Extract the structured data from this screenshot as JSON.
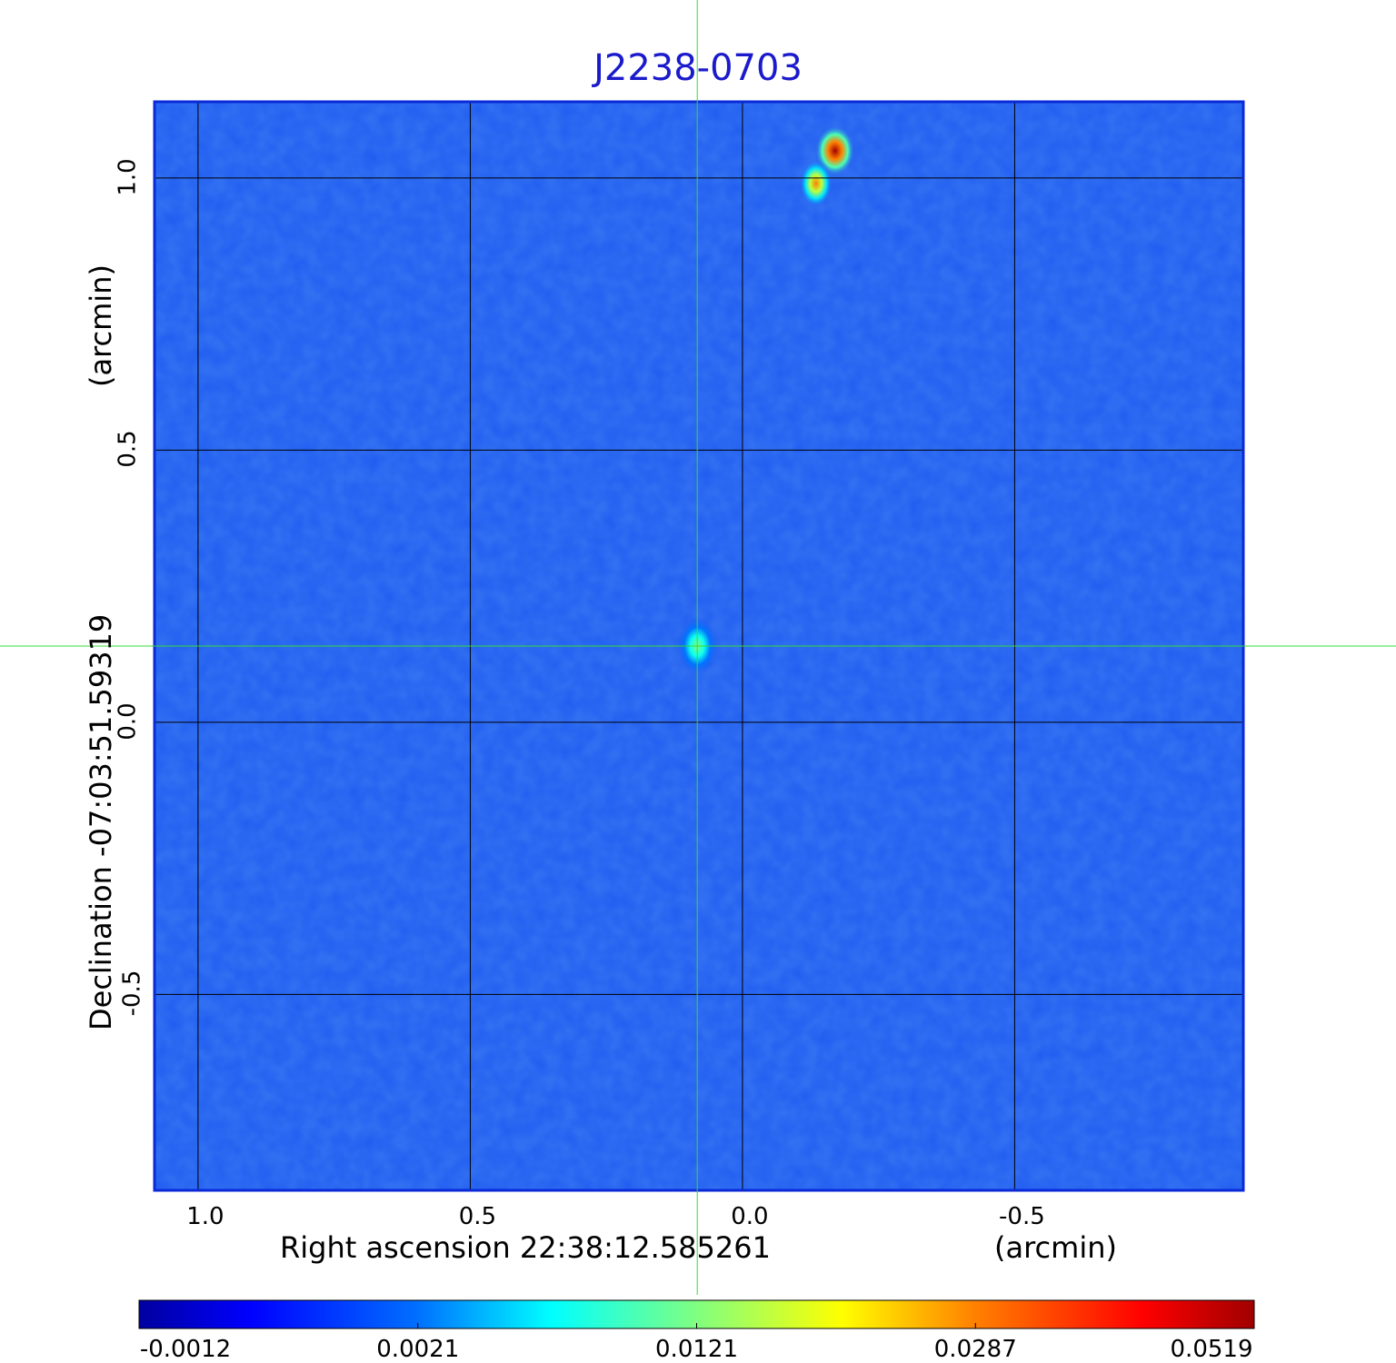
{
  "chart_data": {
    "type": "heatmap",
    "title": "J2238-0703",
    "xlabel": "Right ascension  22:38:12.585261",
    "xlabel_unit": "(arcmin)",
    "ylabel": "Declination  -07:03:51.59319",
    "ylabel_unit": "(arcmin)",
    "x_ticks": [
      "1.0",
      "0.5",
      "0.0",
      "-0.5"
    ],
    "x_tick_values": [
      1.0,
      0.5,
      0.0,
      -0.5
    ],
    "y_ticks": [
      "1.0",
      "0.5",
      "0.0",
      "-0.5"
    ],
    "y_tick_values": [
      1.0,
      0.5,
      0.0,
      -0.5
    ],
    "xlim": [
      1.08,
      -0.92
    ],
    "ylim": [
      -0.86,
      1.14
    ],
    "grid": true,
    "crosshair": {
      "x": 0.083,
      "y": 0.14,
      "color": "#33dd33"
    },
    "sources": [
      {
        "x": 0.083,
        "y": 0.14,
        "value": 0.0121
      },
      {
        "x": -0.17,
        "y": 1.05,
        "value": 0.0519
      },
      {
        "x": -0.135,
        "y": 0.99,
        "value": 0.0287
      }
    ],
    "colorbar": {
      "ticks": [
        "-0.0012",
        "0.0021",
        "0.0121",
        "0.0287",
        "0.0519"
      ],
      "colormap": "jet"
    },
    "background_color": "#1f5cf0"
  }
}
